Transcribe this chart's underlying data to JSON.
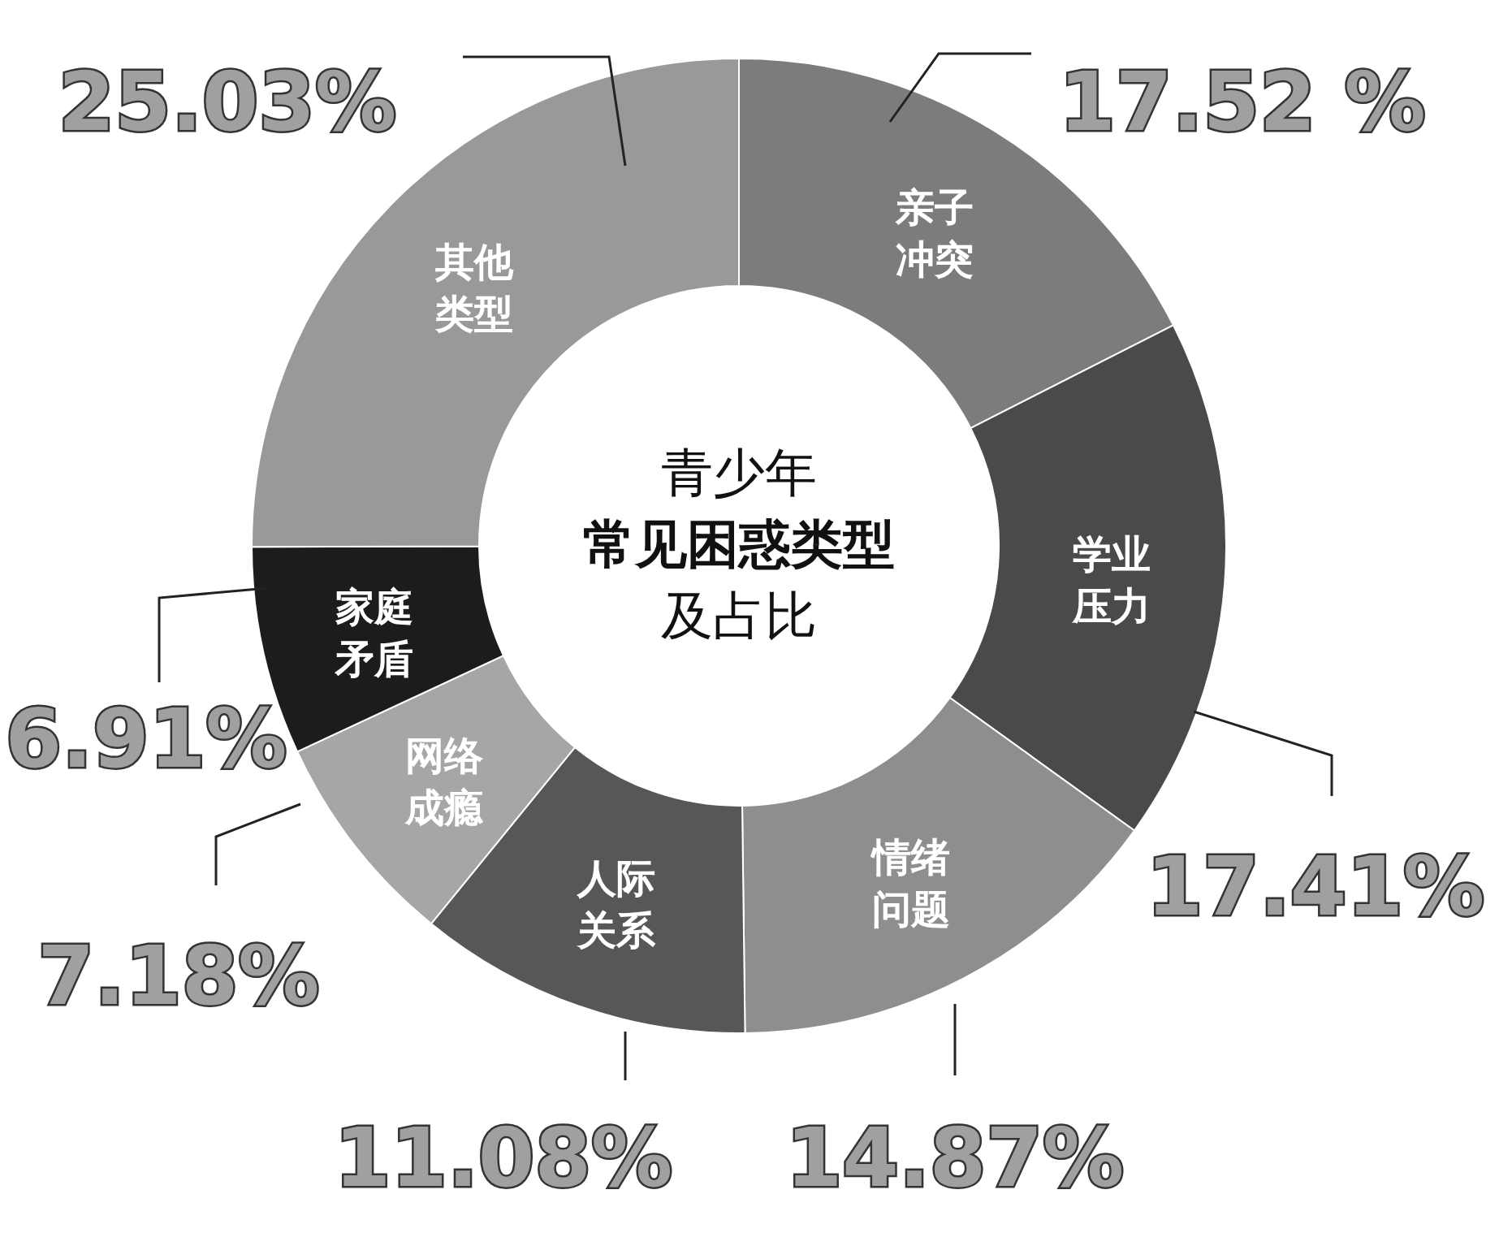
{
  "chart_data": {
    "type": "donut",
    "title": "青少年",
    "subtitle": "常见困惑类型",
    "annotations": [
      "及占比"
    ],
    "categories": [
      "亲子冲突",
      "学业压力",
      "情绪问题",
      "人际关系",
      "网络成瘾",
      "家庭矛盾",
      "其他类型"
    ],
    "values": [
      17.52,
      17.41,
      14.87,
      11.08,
      7.18,
      6.91,
      25.03
    ],
    "colors": [
      "#7c7c7c",
      "#4a4a4a",
      "#8e8e8e",
      "#575757",
      "#a6a6a6",
      "#1c1c1c",
      "#999999"
    ],
    "value_labels": [
      "17.52 %",
      "17.41%",
      "14.87%",
      "11.08%",
      "7.18%",
      "6.91%",
      "25.03%"
    ]
  }
}
